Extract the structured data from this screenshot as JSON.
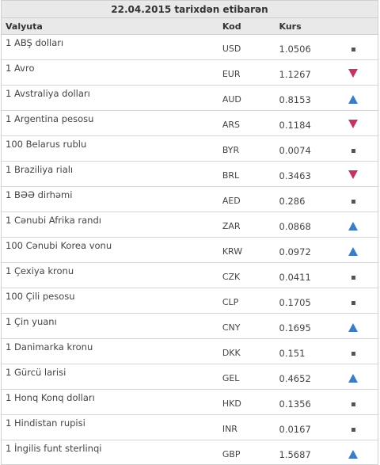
{
  "header": {
    "title": "22.04.2015 tarixdən etibarən"
  },
  "columns": {
    "currency": "Valyuta",
    "code": "Kod",
    "rate": "Kurs"
  },
  "colors": {
    "up": "#3b7dc4",
    "down": "#c0366b",
    "same": "#555555"
  },
  "rows": [
    {
      "currency": "1 ABŞ dolları",
      "code": "USD",
      "rate": "1.0506",
      "trend": "same"
    },
    {
      "currency": "1 Avro",
      "code": "EUR",
      "rate": "1.1267",
      "trend": "down"
    },
    {
      "currency": "1 Avstraliya dolları",
      "code": "AUD",
      "rate": "0.8153",
      "trend": "up"
    },
    {
      "currency": "1 Argentina pesosu",
      "code": "ARS",
      "rate": "0.1184",
      "trend": "down"
    },
    {
      "currency": "100 Belarus rublu",
      "code": "BYR",
      "rate": "0.0074",
      "trend": "same"
    },
    {
      "currency": "1 Braziliya rialı",
      "code": "BRL",
      "rate": "0.3463",
      "trend": "down"
    },
    {
      "currency": "1 BƏƏ dirhəmi",
      "code": "AED",
      "rate": "0.286",
      "trend": "same"
    },
    {
      "currency": "1 Cənubi Afrika randı",
      "code": "ZAR",
      "rate": "0.0868",
      "trend": "up"
    },
    {
      "currency": "100 Cənubi Korea vonu",
      "code": "KRW",
      "rate": "0.0972",
      "trend": "up"
    },
    {
      "currency": "1 Çexiya kronu",
      "code": "CZK",
      "rate": "0.0411",
      "trend": "same"
    },
    {
      "currency": "100 Çili pesosu",
      "code": "CLP",
      "rate": "0.1705",
      "trend": "same"
    },
    {
      "currency": "1 Çin yuanı",
      "code": "CNY",
      "rate": "0.1695",
      "trend": "up"
    },
    {
      "currency": "1 Danimarka kronu",
      "code": "DKK",
      "rate": "0.151",
      "trend": "same"
    },
    {
      "currency": "1 Gürcü larisi",
      "code": "GEL",
      "rate": "0.4652",
      "trend": "up"
    },
    {
      "currency": "1 Honq Konq dolları",
      "code": "HKD",
      "rate": "0.1356",
      "trend": "same"
    },
    {
      "currency": "1 Hindistan rupisi",
      "code": "INR",
      "rate": "0.0167",
      "trend": "same"
    },
    {
      "currency": "1 İngilis funt sterlinqi",
      "code": "GBP",
      "rate": "1.5687",
      "trend": "up"
    }
  ]
}
